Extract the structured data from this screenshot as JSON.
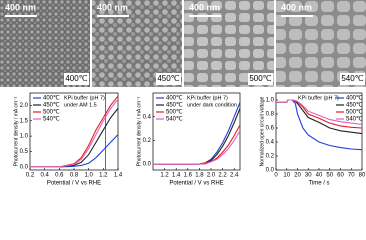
{
  "panels": [
    {
      "scale_bar": "400 nm",
      "label": "400℃"
    },
    {
      "scale_bar": "400 nm",
      "label": "450℃"
    },
    {
      "scale_bar": "400 nm",
      "label": "500℃"
    },
    {
      "scale_bar": "400 nm",
      "label": "540℃"
    }
  ],
  "chart_data": [
    {
      "type": "line",
      "xlabel": "Potential / V vs RHE",
      "ylabel": "Photocurrent density / mA cm⁻²",
      "annotation": [
        "KPi buffer (pH 7)",
        "under AM 1.5"
      ],
      "legend": "upper left",
      "x": [
        0.2,
        0.4,
        0.6,
        0.8,
        0.9,
        1.0,
        1.1,
        1.2,
        1.3,
        1.4
      ],
      "series": [
        {
          "name": "400℃",
          "color": "#1f3fd6",
          "values": [
            0,
            0,
            0,
            0.02,
            0.05,
            0.12,
            0.3,
            0.55,
            0.8,
            1.05
          ]
        },
        {
          "name": "450℃",
          "color": "#222222",
          "values": [
            0,
            0,
            0,
            0.05,
            0.15,
            0.4,
            0.8,
            1.2,
            1.6,
            1.9
          ]
        },
        {
          "name": "500℃",
          "color": "#e02020",
          "values": [
            0,
            0,
            0,
            0.1,
            0.3,
            0.7,
            1.2,
            1.6,
            2.0,
            2.3
          ]
        },
        {
          "name": "540℃",
          "color": "#e060c0",
          "values": [
            0,
            0,
            0,
            0.08,
            0.25,
            0.6,
            1.05,
            1.5,
            1.9,
            2.2
          ]
        }
      ],
      "vline": 1.23,
      "vline_color": "#1f3fd6",
      "xlim": [
        0.2,
        1.4
      ],
      "xticks": [
        0.2,
        0.4,
        0.6,
        0.8,
        {
          "value": 1.0,
          "label": "1.0"
        },
        1.2,
        1.4
      ],
      "ylim": [
        -0.1,
        2.4
      ],
      "yticks": [
        {
          "value": 0,
          "label": "0.0"
        },
        0.5,
        {
          "value": 1.0,
          "label": "1.0"
        },
        1.5,
        {
          "value": 2.0,
          "label": "2.0"
        }
      ]
    },
    {
      "type": "line",
      "xlabel": "Potential / V vs RHE",
      "ylabel": "Photocurrent density / mA cm⁻²",
      "annotation": [
        "KPi buffer (pH 7)",
        "under dark condition"
      ],
      "legend": "upper left",
      "x": [
        1.0,
        1.2,
        1.4,
        1.6,
        1.8,
        1.9,
        2.0,
        2.1,
        2.2,
        2.3,
        2.4,
        2.5
      ],
      "series": [
        {
          "name": "400℃",
          "color": "#1f3fd6",
          "values": [
            0,
            0,
            0,
            0,
            0,
            0.01,
            0.04,
            0.1,
            0.18,
            0.28,
            0.4,
            0.52
          ]
        },
        {
          "name": "450℃",
          "color": "#222222",
          "values": [
            0,
            0,
            0,
            0,
            0,
            0.01,
            0.03,
            0.08,
            0.15,
            0.24,
            0.35,
            0.47
          ]
        },
        {
          "name": "500℃",
          "color": "#e02020",
          "values": [
            0,
            0,
            0,
            0,
            0,
            0.01,
            0.02,
            0.05,
            0.1,
            0.16,
            0.24,
            0.33
          ]
        },
        {
          "name": "540℃",
          "color": "#e060c0",
          "values": [
            0,
            0,
            0,
            0,
            0,
            0,
            0.02,
            0.04,
            0.08,
            0.13,
            0.2,
            0.28
          ]
        }
      ],
      "xlim": [
        1.0,
        2.5
      ],
      "xticks": [
        1.2,
        1.4,
        1.6,
        1.8,
        {
          "value": 2.0,
          "label": "2.0"
        },
        2.2,
        2.4
      ],
      "ylim": [
        -0.05,
        0.6
      ],
      "yticks": [
        {
          "value": 0,
          "label": "0.0"
        },
        0.2,
        0.4
      ]
    },
    {
      "type": "line",
      "xlabel": "Time / s",
      "ylabel": "Normalized open circuit voltage",
      "annotation": [
        "KPi buffer (pH 7)"
      ],
      "legend": "upper right",
      "x": [
        0,
        5,
        10,
        11,
        12,
        15,
        18,
        20,
        25,
        30,
        40,
        50,
        60,
        70,
        80
      ],
      "series": [
        {
          "name": "400℃",
          "color": "#1f3fd6",
          "values": [
            0.97,
            0.97,
            0.97,
            1.0,
            1.0,
            1.0,
            0.95,
            0.8,
            0.6,
            0.5,
            0.4,
            0.35,
            0.32,
            0.3,
            0.29
          ]
        },
        {
          "name": "450℃",
          "color": "#222222",
          "values": [
            0.97,
            0.97,
            0.97,
            1.0,
            1.0,
            1.0,
            0.98,
            0.95,
            0.85,
            0.75,
            0.68,
            0.6,
            0.56,
            0.54,
            0.52
          ]
        },
        {
          "name": "500℃",
          "color": "#e02020",
          "values": [
            0.97,
            0.97,
            0.97,
            1.0,
            1.0,
            1.0,
            0.99,
            0.97,
            0.9,
            0.8,
            0.74,
            0.67,
            0.63,
            0.61,
            0.6
          ]
        },
        {
          "name": "540℃",
          "color": "#e060c0",
          "values": [
            0.97,
            0.97,
            0.97,
            1.0,
            1.0,
            1.0,
            0.99,
            0.98,
            0.92,
            0.84,
            0.78,
            0.72,
            0.69,
            0.67,
            0.65
          ]
        }
      ],
      "xlim": [
        0,
        80
      ],
      "xticks": [
        0,
        10,
        20,
        30,
        40,
        50,
        60,
        70,
        80
      ],
      "ylim": [
        0,
        1.1
      ],
      "yticks": [
        {
          "value": 0,
          "label": "0.0"
        },
        0.2,
        0.4,
        0.6,
        0.8,
        {
          "value": 1.0,
          "label": "1.0"
        }
      ]
    }
  ]
}
